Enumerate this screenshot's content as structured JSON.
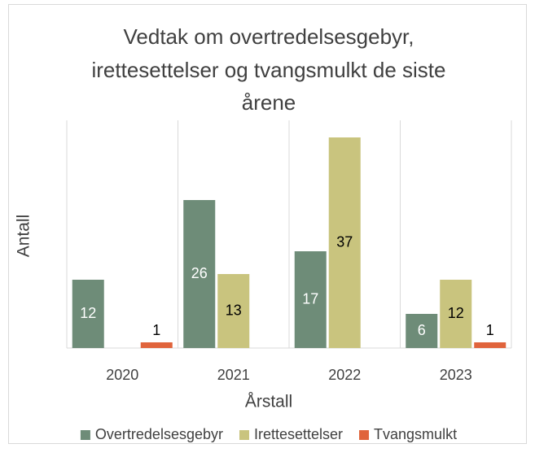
{
  "chart_data": {
    "type": "bar",
    "title": [
      "Vedtak om overtredelsesgebyr,",
      "irettesettelser og tvangsmulkt de siste",
      "årene"
    ],
    "x_label": "Årstall",
    "y_label": "Antall",
    "categories": [
      "2020",
      "2021",
      "2022",
      "2023"
    ],
    "series": [
      {
        "name": "Overtredelsesgebyr",
        "color": "#6e8c78",
        "values": [
          12,
          26,
          17,
          6
        ]
      },
      {
        "name": "Irettesettelser",
        "color": "#c9c47e",
        "values": [
          null,
          13,
          37,
          12
        ]
      },
      {
        "name": "Tvangsmulkt",
        "color": "#e0643c",
        "values": [
          1,
          null,
          null,
          1
        ]
      }
    ],
    "ylim": [
      0,
      40
    ],
    "legend": "bottom"
  }
}
